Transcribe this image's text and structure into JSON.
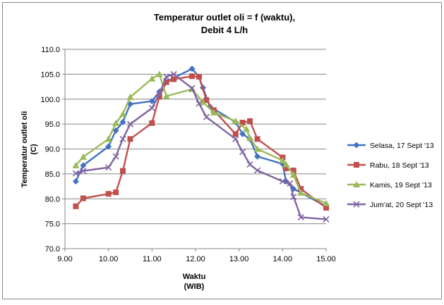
{
  "chart_data": {
    "type": "line",
    "title_line1": "Temperatur outlet oli = f (waktu),",
    "title_line2": "Debit 4 L/h",
    "xlabel_line1": "Waktu",
    "xlabel_line2": "(WIB)",
    "ylabel_line1": "Temperatur outlet oli",
    "ylabel_line2": "(C)",
    "xlim": [
      9.0,
      15.0
    ],
    "ylim": [
      70.0,
      110.0
    ],
    "x_ticks": [
      "9.00",
      "10.00",
      "11.00",
      "12.00",
      "13.00",
      "14.00",
      "15.00"
    ],
    "y_ticks": [
      "70.0",
      "75.0",
      "80.0",
      "85.0",
      "90.0",
      "95.0",
      "100.0",
      "105.0",
      "110.0"
    ],
    "grid": "horizontal",
    "legend_position": "right",
    "series": [
      {
        "name": "Selasa, 17 Sept '13",
        "color": "#4472c4",
        "marker": "diamond",
        "points": [
          [
            9.25,
            83.5
          ],
          [
            9.42,
            86.7
          ],
          [
            10.0,
            90.5
          ],
          [
            10.17,
            93.7
          ],
          [
            10.33,
            95.4
          ],
          [
            10.5,
            99.0
          ],
          [
            11.0,
            99.6
          ],
          [
            11.17,
            101.5
          ],
          [
            11.33,
            103.5
          ],
          [
            11.92,
            106.1
          ],
          [
            12.08,
            104.5
          ],
          [
            12.17,
            102.3
          ],
          [
            12.33,
            98.5
          ],
          [
            12.92,
            95.4
          ],
          [
            13.08,
            93.0
          ],
          [
            13.25,
            92.0
          ],
          [
            13.42,
            88.5
          ],
          [
            14.0,
            87.0
          ],
          [
            14.08,
            83.5
          ],
          [
            14.25,
            82.0
          ],
          [
            15.0,
            78.5
          ]
        ]
      },
      {
        "name": "Rabu, 18 Sept '13",
        "color": "#c0504d",
        "marker": "square",
        "points": [
          [
            9.25,
            78.5
          ],
          [
            9.42,
            80.1
          ],
          [
            10.0,
            81.0
          ],
          [
            10.17,
            81.3
          ],
          [
            10.33,
            85.6
          ],
          [
            10.5,
            92.0
          ],
          [
            11.0,
            95.2
          ],
          [
            11.17,
            100.5
          ],
          [
            11.33,
            103.4
          ],
          [
            11.5,
            104.0
          ],
          [
            11.92,
            104.6
          ],
          [
            12.08,
            104.5
          ],
          [
            12.25,
            99.8
          ],
          [
            12.42,
            97.8
          ],
          [
            12.92,
            93.0
          ],
          [
            13.08,
            95.3
          ],
          [
            13.25,
            95.6
          ],
          [
            13.42,
            92.0
          ],
          [
            14.0,
            88.3
          ],
          [
            14.08,
            86.1
          ],
          [
            14.25,
            85.7
          ],
          [
            14.42,
            82.0
          ],
          [
            15.0,
            78.2
          ]
        ]
      },
      {
        "name": "Kamis, 19 Sept '13",
        "color": "#9bbb59",
        "marker": "triangle",
        "points": [
          [
            9.25,
            86.7
          ],
          [
            9.42,
            88.4
          ],
          [
            10.0,
            92.0
          ],
          [
            10.17,
            95.2
          ],
          [
            10.33,
            97.0
          ],
          [
            10.5,
            100.4
          ],
          [
            11.0,
            104.1
          ],
          [
            11.17,
            105.0
          ],
          [
            11.33,
            100.6
          ],
          [
            11.92,
            102.0
          ],
          [
            12.17,
            99.4
          ],
          [
            12.42,
            97.3
          ],
          [
            12.92,
            95.6
          ],
          [
            13.17,
            94.0
          ],
          [
            13.25,
            92.2
          ],
          [
            13.42,
            90.0
          ],
          [
            14.0,
            87.7
          ],
          [
            14.08,
            86.9
          ],
          [
            14.25,
            84.8
          ],
          [
            14.42,
            81.2
          ],
          [
            15.0,
            79.1
          ]
        ]
      },
      {
        "name": "Jum'at, 20 Sept '13",
        "color": "#8064a2",
        "marker": "x",
        "points": [
          [
            9.25,
            85.1
          ],
          [
            9.42,
            85.6
          ],
          [
            10.0,
            86.3
          ],
          [
            10.17,
            88.5
          ],
          [
            10.33,
            92.0
          ],
          [
            10.5,
            95.0
          ],
          [
            11.0,
            98.2
          ],
          [
            11.17,
            101.0
          ],
          [
            11.33,
            104.5
          ],
          [
            11.5,
            105.0
          ],
          [
            11.92,
            102.2
          ],
          [
            12.08,
            99.1
          ],
          [
            12.25,
            96.4
          ],
          [
            12.92,
            92.0
          ],
          [
            13.08,
            89.4
          ],
          [
            13.25,
            86.9
          ],
          [
            13.42,
            85.7
          ],
          [
            14.0,
            83.5
          ],
          [
            14.17,
            83.1
          ],
          [
            14.25,
            80.4
          ],
          [
            14.42,
            76.3
          ],
          [
            15.0,
            75.9
          ]
        ]
      }
    ]
  }
}
